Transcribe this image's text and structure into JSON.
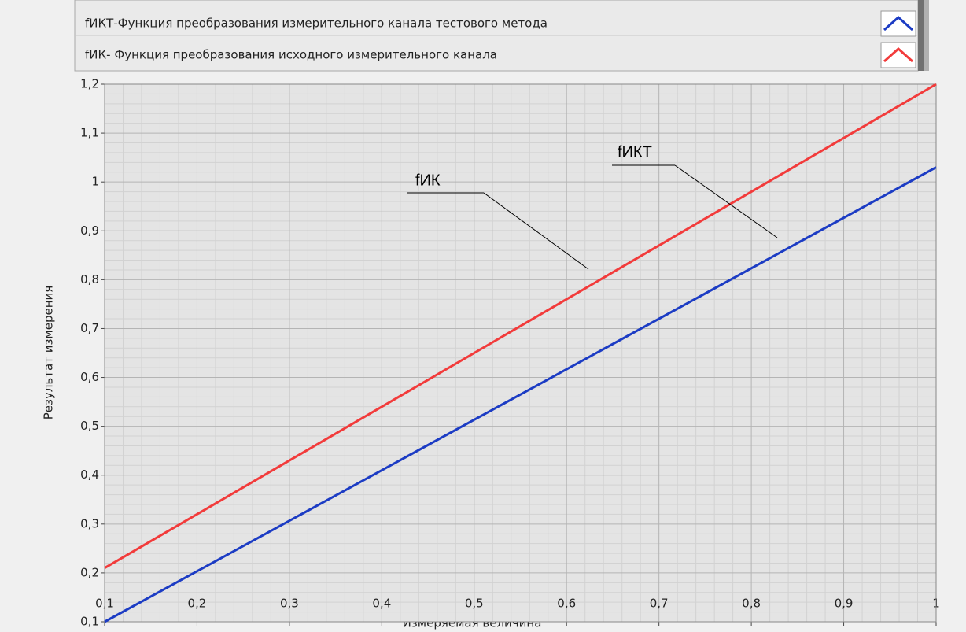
{
  "chart_data": {
    "type": "line",
    "x_label": "Измеряемая величина",
    "y_label": "Результат измерения",
    "x": [
      0.1,
      1
    ],
    "series": [
      {
        "name": "fИКТ-Функция преобразования измерительного канала тестового метода",
        "color": "#1c3cc4",
        "values": [
          0.1,
          1.03
        ]
      },
      {
        "name": "fИК- Функция преобразования исходного измерительного канала",
        "color": "#f23b3b",
        "values": [
          0.21,
          1.2
        ]
      }
    ],
    "annotations": [
      "fИК",
      "fИКТ"
    ],
    "xlim": [
      0.1,
      1
    ],
    "xticks": [
      {
        "value": 0.1,
        "label": "0,1"
      },
      {
        "value": 0.2,
        "label": "0,2"
      },
      {
        "value": 0.3,
        "label": "0,3"
      },
      {
        "value": 0.4,
        "label": "0,4"
      },
      {
        "value": 0.5,
        "label": "0,5"
      },
      {
        "value": 0.6,
        "label": "0,6"
      },
      {
        "value": 0.7,
        "label": "0,7"
      },
      {
        "value": 0.8,
        "label": "0,8"
      },
      {
        "value": 0.9,
        "label": "0,9"
      },
      1
    ],
    "ylim": [
      0.1,
      1.2
    ],
    "yticks": [
      {
        "value": 0.1,
        "label": "0,1"
      },
      {
        "value": 0.2,
        "label": "0,2"
      },
      {
        "value": 0.3,
        "label": "0,3"
      },
      {
        "value": 0.4,
        "label": "0,4"
      },
      {
        "value": 0.5,
        "label": "0,5"
      },
      {
        "value": 0.6,
        "label": "0,6"
      },
      {
        "value": 0.7,
        "label": "0,7"
      },
      {
        "value": 0.8,
        "label": "0,8"
      },
      {
        "value": 0.9,
        "label": "0,9"
      },
      1,
      {
        "value": 1.1,
        "label": "1,1"
      },
      {
        "value": 1.2,
        "label": "1,2"
      }
    ],
    "grid": true
  }
}
